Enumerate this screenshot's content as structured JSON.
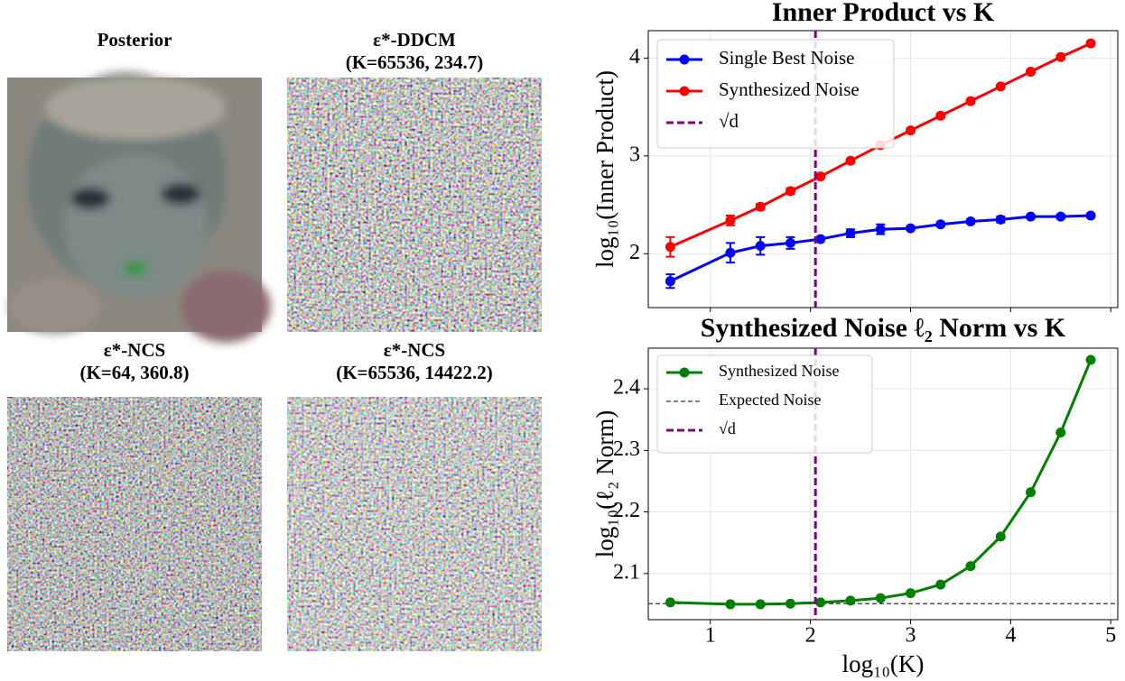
{
  "image_panels": [
    {
      "title": "Posterior"
    },
    {
      "title": "ε*-DDCM",
      "subtitle": "(K=65536, 234.7)"
    },
    {
      "title": "ε*-NCS",
      "subtitle": "(K=64, 360.8)"
    },
    {
      "title": "ε*-NCS",
      "subtitle": "(K=65536, 14422.2)"
    }
  ],
  "chart_data": [
    {
      "type": "line",
      "title": "Inner Product vs K",
      "ylabel": "log₁₀(Inner Product)",
      "x": [
        0.6,
        1.2,
        1.5,
        1.8,
        2.1,
        2.4,
        2.7,
        3.0,
        3.3,
        3.6,
        3.9,
        4.2,
        4.5,
        4.8
      ],
      "series": [
        {
          "name": "Single Best Noise",
          "color": "#0000ff",
          "values": [
            1.72,
            2.01,
            2.08,
            2.11,
            2.15,
            2.21,
            2.25,
            2.26,
            2.3,
            2.33,
            2.35,
            2.38,
            2.38,
            2.39
          ],
          "errors": [
            0.07,
            0.1,
            0.09,
            0.06,
            0.02,
            0.04,
            0.05,
            0.02,
            0.02,
            0.02,
            0.03,
            0.02,
            0.02,
            0.02
          ]
        },
        {
          "name": "Synthesized Noise",
          "color": "#ff0000",
          "values": [
            2.07,
            2.34,
            2.48,
            2.64,
            2.79,
            2.95,
            3.11,
            3.26,
            3.41,
            3.56,
            3.71,
            3.86,
            4.01,
            4.15
          ],
          "errors": [
            0.1,
            0.05,
            0.03,
            0.03,
            0.02,
            0.02,
            0.02,
            0.02,
            0.02,
            0.02,
            0.02,
            0.02,
            0.02,
            0.02
          ]
        }
      ],
      "vline": {
        "name": "√d",
        "x": 2.05,
        "color": "#800080"
      },
      "xlim": [
        0.38,
        5.07
      ],
      "xticks": [
        1,
        2,
        3,
        4,
        5
      ],
      "x_tick_labels": false,
      "ylim": [
        1.45,
        4.28
      ],
      "yticks": [
        2,
        3,
        4
      ],
      "grid": true,
      "legend": "upper left"
    },
    {
      "type": "line",
      "title": "Synthesized Noise ℓ₂ Norm vs K",
      "ylabel": "log₁₀(ℓ₂ Norm)",
      "xlabel": "log₁₀(K)",
      "x": [
        0.6,
        1.2,
        1.5,
        1.8,
        2.1,
        2.4,
        2.7,
        3.0,
        3.3,
        3.6,
        3.9,
        4.2,
        4.5,
        4.8
      ],
      "series": [
        {
          "name": "Synthesized Noise",
          "color": "#008000",
          "values": [
            2.053,
            2.05,
            2.05,
            2.051,
            2.053,
            2.056,
            2.06,
            2.068,
            2.082,
            2.112,
            2.16,
            2.232,
            2.329,
            2.447
          ]
        }
      ],
      "hline": {
        "name": "Expected Noise",
        "y": 2.051,
        "color": "#555555"
      },
      "vline": {
        "name": "√d",
        "x": 2.05,
        "color": "#800080"
      },
      "xlim": [
        0.38,
        5.07
      ],
      "xticks": [
        1,
        2,
        3,
        4,
        5
      ],
      "x_tick_labels": true,
      "ylim": [
        2.025,
        2.466
      ],
      "yticks": [
        2.1,
        2.2,
        2.3,
        2.4
      ],
      "grid": true,
      "legend": "upper left"
    }
  ]
}
